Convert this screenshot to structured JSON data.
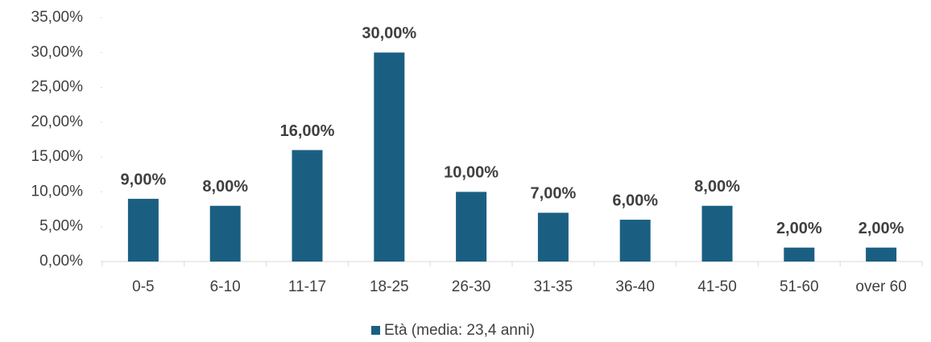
{
  "chart_data": {
    "type": "bar",
    "categories": [
      "0-5",
      "6-10",
      "11-17",
      "18-25",
      "26-30",
      "31-35",
      "36-40",
      "41-50",
      "51-60",
      "over 60"
    ],
    "series": [
      {
        "name": "Età (media: 23,4 anni)",
        "color": "#1a5f82",
        "values": [
          9,
          8,
          16,
          30,
          10,
          7,
          6,
          8,
          2,
          2
        ],
        "value_labels": [
          "9,00%",
          "8,00%",
          "16,00%",
          "30,00%",
          "10,00%",
          "7,00%",
          "6,00%",
          "8,00%",
          "2,00%",
          "2,00%"
        ]
      }
    ],
    "ylim": [
      0,
      35
    ],
    "yticks": [
      {
        "value": 0,
        "label": "0,00%"
      },
      {
        "value": 5,
        "label": "5,00%"
      },
      {
        "value": 10,
        "label": "10,00%"
      },
      {
        "value": 15,
        "label": "15,00%"
      },
      {
        "value": 20,
        "label": "20,00%"
      },
      {
        "value": 25,
        "label": "25,00%"
      },
      {
        "value": 30,
        "label": "30,00%"
      },
      {
        "value": 35,
        "label": "35,00%"
      }
    ],
    "grid": false,
    "legend": "bottom"
  }
}
